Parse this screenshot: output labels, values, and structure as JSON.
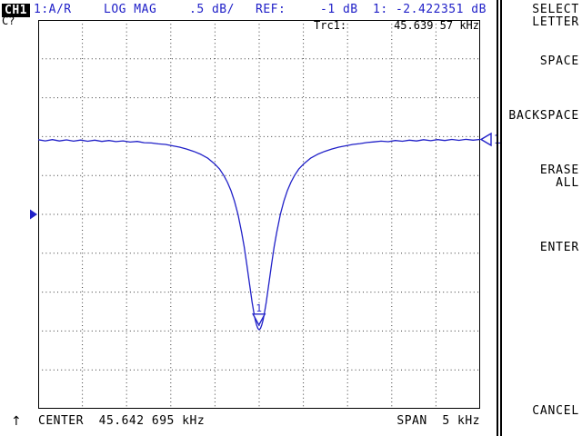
{
  "colors": {
    "accent_blue": "#2121c8",
    "text_black": "#000000",
    "background": "#ffffff"
  },
  "header": {
    "channel_badge": "CH1",
    "cal_status": "C?",
    "trace_input": "1:A/R",
    "format": "LOG MAG",
    "scale_per_div": ".5 dB/",
    "ref_label": "REF:",
    "ref_value": "-1 dB",
    "marker_value_readout": "1: -2.422351 dB"
  },
  "display": {
    "trace_name_label": "Trc1:",
    "marker_stimulus_readout": "45.639 57 kHz",
    "marker_label": "1",
    "trace_edge_indicator_label": "1"
  },
  "softkeys": [
    {
      "lines": [
        "SELECT",
        "LETTER"
      ]
    },
    {
      "lines": [
        "SPACE"
      ]
    },
    {
      "lines": [
        "BACKSPACE"
      ]
    },
    {
      "lines": [
        "ERASE",
        "ALL"
      ]
    },
    {
      "lines": [
        "ENTER"
      ]
    },
    {
      "lines": [
        "CANCEL"
      ]
    }
  ],
  "footer": {
    "sweep_direction_arrow": "↑",
    "center_readout": "CENTER  45.642 695 kHz",
    "span_readout": "SPAN  5 kHz"
  },
  "chart_data": {
    "type": "line",
    "title": "",
    "xlabel": "",
    "ylabel": "",
    "x_unit": "kHz",
    "y_unit": "dB",
    "center_khz": 45.642695,
    "span_khz": 5,
    "x_start_khz": 43.142695,
    "x_stop_khz": 48.142695,
    "ref_db": -1,
    "db_per_div": 0.5,
    "y_top_db": 1.5,
    "y_bottom_db": -3.5,
    "divisions_x": 10,
    "divisions_y": 10,
    "grid": "dotted",
    "legend_position": "none",
    "marker": {
      "number": "1",
      "freq_khz": 45.63957,
      "db": -2.422351
    },
    "series": [
      {
        "name": "Trc1",
        "points": [
          [
            43.1427,
            -0.04
          ],
          [
            43.2227,
            -0.055
          ],
          [
            43.3027,
            -0.038
          ],
          [
            43.3827,
            -0.056
          ],
          [
            43.4627,
            -0.042
          ],
          [
            43.5427,
            -0.058
          ],
          [
            43.6227,
            -0.044
          ],
          [
            43.7027,
            -0.06
          ],
          [
            43.7827,
            -0.046
          ],
          [
            43.8627,
            -0.062
          ],
          [
            43.9427,
            -0.05
          ],
          [
            44.0227,
            -0.064
          ],
          [
            44.1027,
            -0.055
          ],
          [
            44.1827,
            -0.07
          ],
          [
            44.2627,
            -0.062
          ],
          [
            44.3427,
            -0.078
          ],
          [
            44.4227,
            -0.082
          ],
          [
            44.5027,
            -0.094
          ],
          [
            44.5827,
            -0.1
          ],
          [
            44.6627,
            -0.118
          ],
          [
            44.7427,
            -0.136
          ],
          [
            44.8227,
            -0.16
          ],
          [
            44.9027,
            -0.19
          ],
          [
            44.9827,
            -0.228
          ],
          [
            45.0627,
            -0.278
          ],
          [
            45.1427,
            -0.355
          ],
          [
            45.1927,
            -0.415
          ],
          [
            45.2427,
            -0.5
          ],
          [
            45.2827,
            -0.585
          ],
          [
            45.3227,
            -0.692
          ],
          [
            45.3627,
            -0.828
          ],
          [
            45.4027,
            -1.0
          ],
          [
            45.4427,
            -1.225
          ],
          [
            45.4727,
            -1.415
          ],
          [
            45.5027,
            -1.645
          ],
          [
            45.5227,
            -1.805
          ],
          [
            45.5427,
            -1.97
          ],
          [
            45.5627,
            -2.128
          ],
          [
            45.5827,
            -2.268
          ],
          [
            45.5977,
            -2.355
          ],
          [
            45.6127,
            -2.42
          ],
          [
            45.6277,
            -2.465
          ],
          [
            45.6427,
            -2.485
          ],
          [
            45.6577,
            -2.465
          ],
          [
            45.6727,
            -2.42
          ],
          [
            45.6877,
            -2.355
          ],
          [
            45.7027,
            -2.268
          ],
          [
            45.7227,
            -2.128
          ],
          [
            45.7427,
            -1.97
          ],
          [
            45.7627,
            -1.805
          ],
          [
            45.7827,
            -1.645
          ],
          [
            45.8127,
            -1.415
          ],
          [
            45.8427,
            -1.225
          ],
          [
            45.8827,
            -1.0
          ],
          [
            45.9227,
            -0.828
          ],
          [
            45.9627,
            -0.692
          ],
          [
            46.0027,
            -0.585
          ],
          [
            46.0427,
            -0.5
          ],
          [
            46.0927,
            -0.415
          ],
          [
            46.1427,
            -0.355
          ],
          [
            46.2227,
            -0.278
          ],
          [
            46.3027,
            -0.228
          ],
          [
            46.3827,
            -0.19
          ],
          [
            46.4627,
            -0.16
          ],
          [
            46.5427,
            -0.136
          ],
          [
            46.6227,
            -0.118
          ],
          [
            46.7027,
            -0.1
          ],
          [
            46.7827,
            -0.09
          ],
          [
            46.8627,
            -0.076
          ],
          [
            46.9427,
            -0.068
          ],
          [
            47.0227,
            -0.058
          ],
          [
            47.1027,
            -0.066
          ],
          [
            47.1827,
            -0.05
          ],
          [
            47.2627,
            -0.06
          ],
          [
            47.3427,
            -0.045
          ],
          [
            47.4227,
            -0.056
          ],
          [
            47.5027,
            -0.04
          ],
          [
            47.5827,
            -0.052
          ],
          [
            47.6627,
            -0.038
          ],
          [
            47.7427,
            -0.05
          ],
          [
            47.8227,
            -0.036
          ],
          [
            47.9027,
            -0.048
          ],
          [
            47.9827,
            -0.035
          ],
          [
            48.0627,
            -0.046
          ],
          [
            48.1427,
            -0.036
          ]
        ]
      }
    ]
  }
}
